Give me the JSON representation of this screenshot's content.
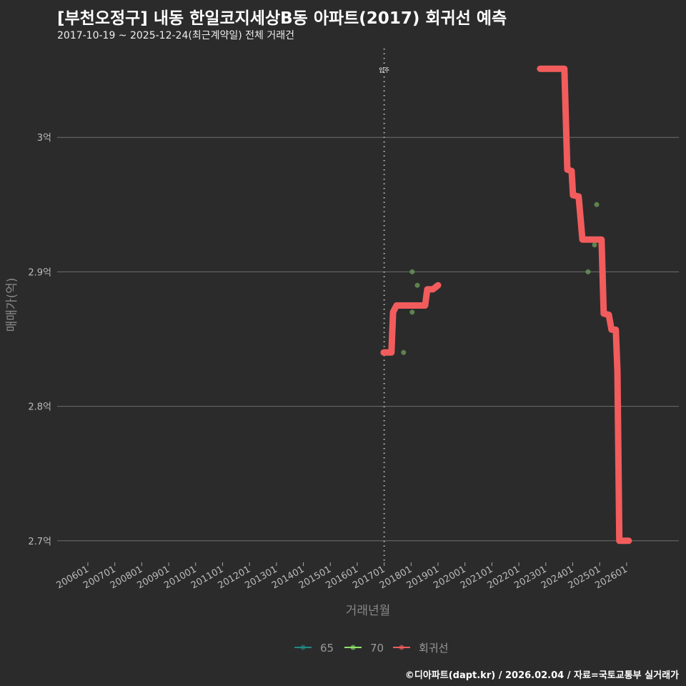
{
  "title": "[부천오정구] 내동 한일코지세상B동 아파트(2017) 회귀선 예측",
  "subtitle": "2017-10-19 ~ 2025-12-24(최근계약일) 전체 거래건",
  "credit": "©디아파트(dapt.kr) / 2026.02.04 / 자료=국토교통부 실거래가",
  "chart_data": {
    "type": "line",
    "xlabel": "거래년월",
    "ylabel": "매매가(억)",
    "xlim": [
      2004.86,
      2027.94
    ],
    "ylim": [
      2.685,
      3.066
    ],
    "x_ticks": [
      "200601",
      "200701",
      "200801",
      "200901",
      "201001",
      "201101",
      "201201",
      "201301",
      "201401",
      "201501",
      "201601",
      "201701",
      "201801",
      "201901",
      "202001",
      "202101",
      "202201",
      "202301",
      "202401",
      "202501",
      "202601"
    ],
    "y_ticks": [
      {
        "value": 2.7,
        "label": "2.7억"
      },
      {
        "value": 2.8,
        "label": "2.8억"
      },
      {
        "value": 2.9,
        "label": "2.9억"
      },
      {
        "value": 3.0,
        "label": "3억"
      }
    ],
    "grid": true,
    "annotation": {
      "x": 2017.0,
      "label": "입주"
    },
    "legend": {
      "placement": "bottom",
      "entries": [
        {
          "label": "65",
          "color": "#1f8a84"
        },
        {
          "label": "70",
          "color": "#8ee36a"
        },
        {
          "label": "회귀선",
          "color": "#f25c5c"
        }
      ]
    },
    "series": [
      {
        "name": "65",
        "type": "scatter",
        "color": "#1f8a84",
        "points": []
      },
      {
        "name": "70",
        "type": "scatter",
        "color": "#6a9a55",
        "points": [
          [
            2017.72,
            2.84
          ],
          [
            2018.04,
            2.87
          ],
          [
            2018.04,
            2.9
          ],
          [
            2018.23,
            2.89
          ],
          [
            2024.57,
            2.9
          ],
          [
            2024.81,
            2.92
          ],
          [
            2024.89,
            2.95
          ]
        ]
      },
      {
        "name": "회귀선",
        "type": "line",
        "color": "#f25c5c",
        "segments": [
          [
            [
              2016.98,
              2.84
            ],
            [
              2017.27,
              2.84
            ],
            [
              2017.33,
              2.87
            ],
            [
              2017.46,
              2.875
            ],
            [
              2018.52,
              2.875
            ],
            [
              2018.6,
              2.887
            ],
            [
              2018.81,
              2.887
            ],
            [
              2019.0,
              2.89
            ]
          ],
          [
            [
              2022.79,
              3.051
            ],
            [
              2023.69,
              3.051
            ],
            [
              2023.8,
              2.976
            ],
            [
              2023.96,
              2.975
            ],
            [
              2024.01,
              2.957
            ],
            [
              2024.22,
              2.956
            ],
            [
              2024.36,
              2.924
            ],
            [
              2025.07,
              2.924
            ],
            [
              2025.15,
              2.869
            ],
            [
              2025.34,
              2.868
            ],
            [
              2025.44,
              2.857
            ],
            [
              2025.6,
              2.857
            ],
            [
              2025.66,
              2.826
            ],
            [
              2025.73,
              2.7
            ],
            [
              2026.08,
              2.7
            ]
          ]
        ]
      }
    ]
  }
}
